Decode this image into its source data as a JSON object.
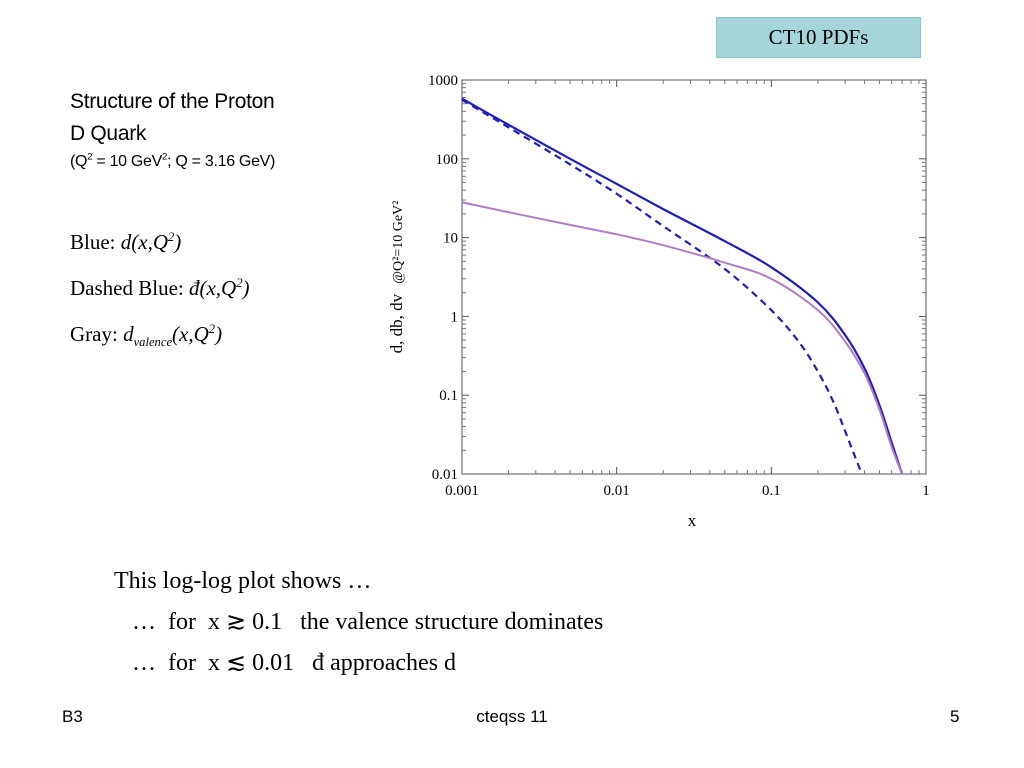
{
  "badge": "CT10 PDFs",
  "heading": {
    "line1": "Structure of the Proton",
    "line2": "D Quark",
    "line3_pre": "(Q",
    "line3_sup1": "2",
    "line3_mid": " = 10 GeV",
    "line3_sup2": "2",
    "line3_post": "; Q = 3.16 GeV)"
  },
  "legend": {
    "blue_label": "Blue: ",
    "blue_func": "d(x,Q",
    "blue_sup": "2",
    "blue_close": ")",
    "dashed_label": "Dashed Blue: ",
    "dashed_func": "đ(x,Q",
    "dashed_sup": "2",
    "dashed_close": ")",
    "gray_label": "Gray: ",
    "gray_d": "d",
    "gray_sub": "valence",
    "gray_func": "(x,Q",
    "gray_sup": "2",
    "gray_close": ")"
  },
  "chart_data": {
    "type": "line",
    "xscale": "log",
    "yscale": "log",
    "xlim": [
      0.001,
      1
    ],
    "ylim": [
      0.01,
      1000
    ],
    "xticks": [
      "0.001",
      "0.01",
      "0.1",
      "1"
    ],
    "yticks": [
      "0.01",
      "0.1",
      "1",
      "10",
      "100",
      "1000"
    ],
    "xlabel": "x",
    "ylabel_main": "d, db, dv",
    "ylabel_sub": "@Q²=10 GeV²",
    "grid": false,
    "series": [
      {
        "color": "#1f1fb8",
        "dash": "solid",
        "x": [
          0.001,
          0.002,
          0.005,
          0.01,
          0.02,
          0.05,
          0.1,
          0.2,
          0.3,
          0.4,
          0.5,
          0.6,
          0.7
        ],
        "y": [
          580,
          270,
          100,
          48,
          23,
          9,
          4.2,
          1.5,
          0.58,
          0.22,
          0.075,
          0.025,
          0.01
        ]
      },
      {
        "color": "#1f1fb8",
        "dash": "dashed",
        "x": [
          0.001,
          0.002,
          0.005,
          0.01,
          0.02,
          0.05,
          0.1,
          0.15,
          0.2,
          0.25,
          0.3,
          0.35,
          0.385
        ],
        "y": [
          560,
          250,
          85,
          36,
          14,
          4.0,
          1.2,
          0.48,
          0.2,
          0.085,
          0.035,
          0.016,
          0.01
        ]
      },
      {
        "color": "#b07cc6",
        "dash": "solid",
        "x": [
          0.001,
          0.002,
          0.005,
          0.01,
          0.02,
          0.05,
          0.1,
          0.2,
          0.3,
          0.4,
          0.5,
          0.6,
          0.7
        ],
        "y": [
          28,
          21,
          14.5,
          11,
          8,
          4.8,
          3,
          1.2,
          0.48,
          0.19,
          0.066,
          0.022,
          0.01
        ]
      }
    ]
  },
  "notes": {
    "line0": "This log-log plot shows …",
    "line1": "…  for  x ≳ 0.1   the valence structure dominates",
    "line2": "…  for  x ≲ 0.01   đ approaches d"
  },
  "footer": {
    "left": "B3",
    "center": "cteqss 11",
    "right": "5"
  }
}
